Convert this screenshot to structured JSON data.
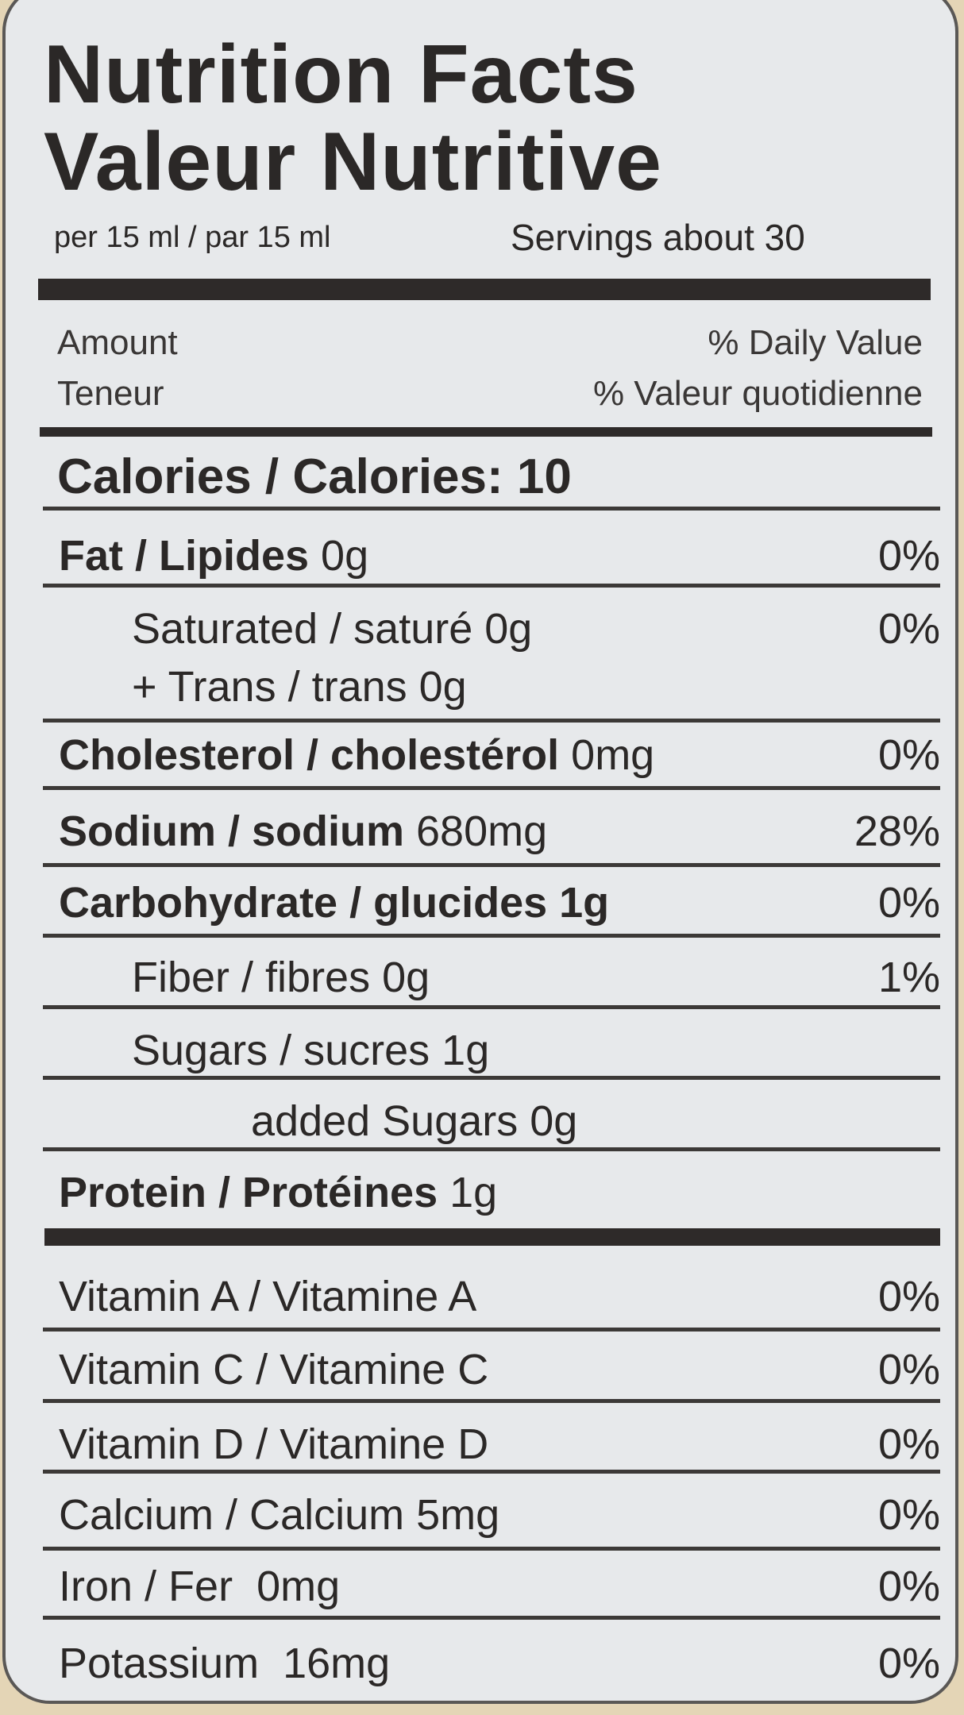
{
  "title_en": "Nutrition Facts",
  "title_fr": "Valeur Nutritive",
  "serving": "per 15 ml / par 15 ml",
  "servings": "Servings about 30",
  "header": {
    "amount": "Amount",
    "teneur": "Teneur",
    "dv": "% Daily Value",
    "dv_fr": "% Valeur quotidienne"
  },
  "calories": "Calories / Calories: 10",
  "rows": [
    {
      "bold": "Fat / Lipides",
      "amt": " 0g",
      "dv": "0%"
    },
    {
      "bold": "",
      "amt": "Saturated / saturé 0g",
      "dv": "0%"
    },
    {
      "bold": "",
      "amt": "+ Trans / trans 0g",
      "dv": ""
    },
    {
      "bold": "Cholesterol / cholestérol",
      "amt": " 0mg",
      "dv": "0%"
    },
    {
      "bold": "Sodium / sodium",
      "amt": " 680mg",
      "dv": "28%"
    },
    {
      "bold": "Carbohydrate / glucides 1g",
      "amt": "",
      "dv": "0%"
    },
    {
      "bold": "",
      "amt": "Fiber / fibres 0g",
      "dv": "1%"
    },
    {
      "bold": "",
      "amt": "Sugars / sucres 1g",
      "dv": ""
    },
    {
      "bold": "",
      "amt": "added Sugars 0g",
      "dv": ""
    },
    {
      "bold": "Protein / Protéines",
      "amt": " 1g",
      "dv": ""
    },
    {
      "bold": "",
      "amt": "Vitamin A / Vitamine A",
      "dv": "0%"
    },
    {
      "bold": "",
      "amt": "Vitamin C / Vitamine C",
      "dv": "0%"
    },
    {
      "bold": "",
      "amt": "Vitamin D / Vitamine D",
      "dv": "0%"
    },
    {
      "bold": "",
      "amt": "Calcium / Calcium 5mg",
      "dv": "0%"
    },
    {
      "bold": "",
      "amt": "Iron / Fer  0mg",
      "dv": "0%"
    },
    {
      "bold": "",
      "amt": "Potassium  16mg",
      "dv": "0%"
    }
  ]
}
